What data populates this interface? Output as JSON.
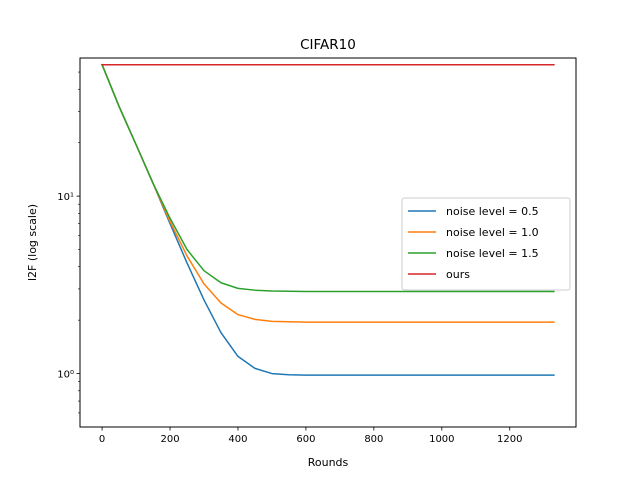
{
  "chart_data": {
    "type": "line",
    "title": "CIFAR10",
    "xlabel": "Rounds",
    "ylabel": "l2F (log scale)",
    "xlim": [
      -65,
      1395
    ],
    "ylim": [
      0.5,
      60
    ],
    "yscale": "log",
    "grid": false,
    "legend_position": "center-right",
    "x_ticks": [
      0,
      200,
      400,
      600,
      800,
      1000,
      1200
    ],
    "y_major_ticks": [
      1,
      10
    ],
    "y_major_tick_labels": [
      "10⁰",
      "10¹"
    ],
    "y_minor_ticks": [
      0.6,
      0.7,
      0.8,
      0.9,
      2,
      3,
      4,
      5,
      6,
      7,
      8,
      9,
      20,
      30,
      40,
      50
    ],
    "series": [
      {
        "name": "noise level = 0.5",
        "color": "#1f77b4",
        "x": [
          0,
          50,
          100,
          150,
          200,
          250,
          300,
          350,
          400,
          450,
          500,
          550,
          600,
          650,
          700,
          800,
          1000,
          1200,
          1330
        ],
        "y": [
          55,
          32,
          19.5,
          11.8,
          7.0,
          4.2,
          2.6,
          1.7,
          1.25,
          1.07,
          1.0,
          0.985,
          0.98,
          0.98,
          0.98,
          0.98,
          0.98,
          0.98,
          0.98
        ]
      },
      {
        "name": "noise level = 1.0",
        "color": "#ff7f0e",
        "x": [
          0,
          50,
          100,
          150,
          200,
          250,
          300,
          350,
          400,
          450,
          500,
          550,
          600,
          650,
          700,
          800,
          1000,
          1200,
          1330
        ],
        "y": [
          55,
          32,
          19.5,
          11.8,
          7.2,
          4.6,
          3.2,
          2.5,
          2.15,
          2.02,
          1.97,
          1.96,
          1.95,
          1.95,
          1.95,
          1.95,
          1.95,
          1.95,
          1.95
        ]
      },
      {
        "name": "noise level = 1.5",
        "color": "#2ca02c",
        "x": [
          0,
          50,
          100,
          150,
          200,
          250,
          300,
          350,
          400,
          450,
          500,
          550,
          600,
          650,
          700,
          800,
          1000,
          1200,
          1330
        ],
        "y": [
          55,
          32,
          19.5,
          11.8,
          7.5,
          5.0,
          3.8,
          3.25,
          3.02,
          2.95,
          2.92,
          2.91,
          2.9,
          2.9,
          2.9,
          2.9,
          2.9,
          2.9,
          2.9
        ]
      },
      {
        "name": "ours",
        "color": "#d62728",
        "x": [
          0,
          1330
        ],
        "y": [
          55,
          55
        ]
      }
    ]
  }
}
